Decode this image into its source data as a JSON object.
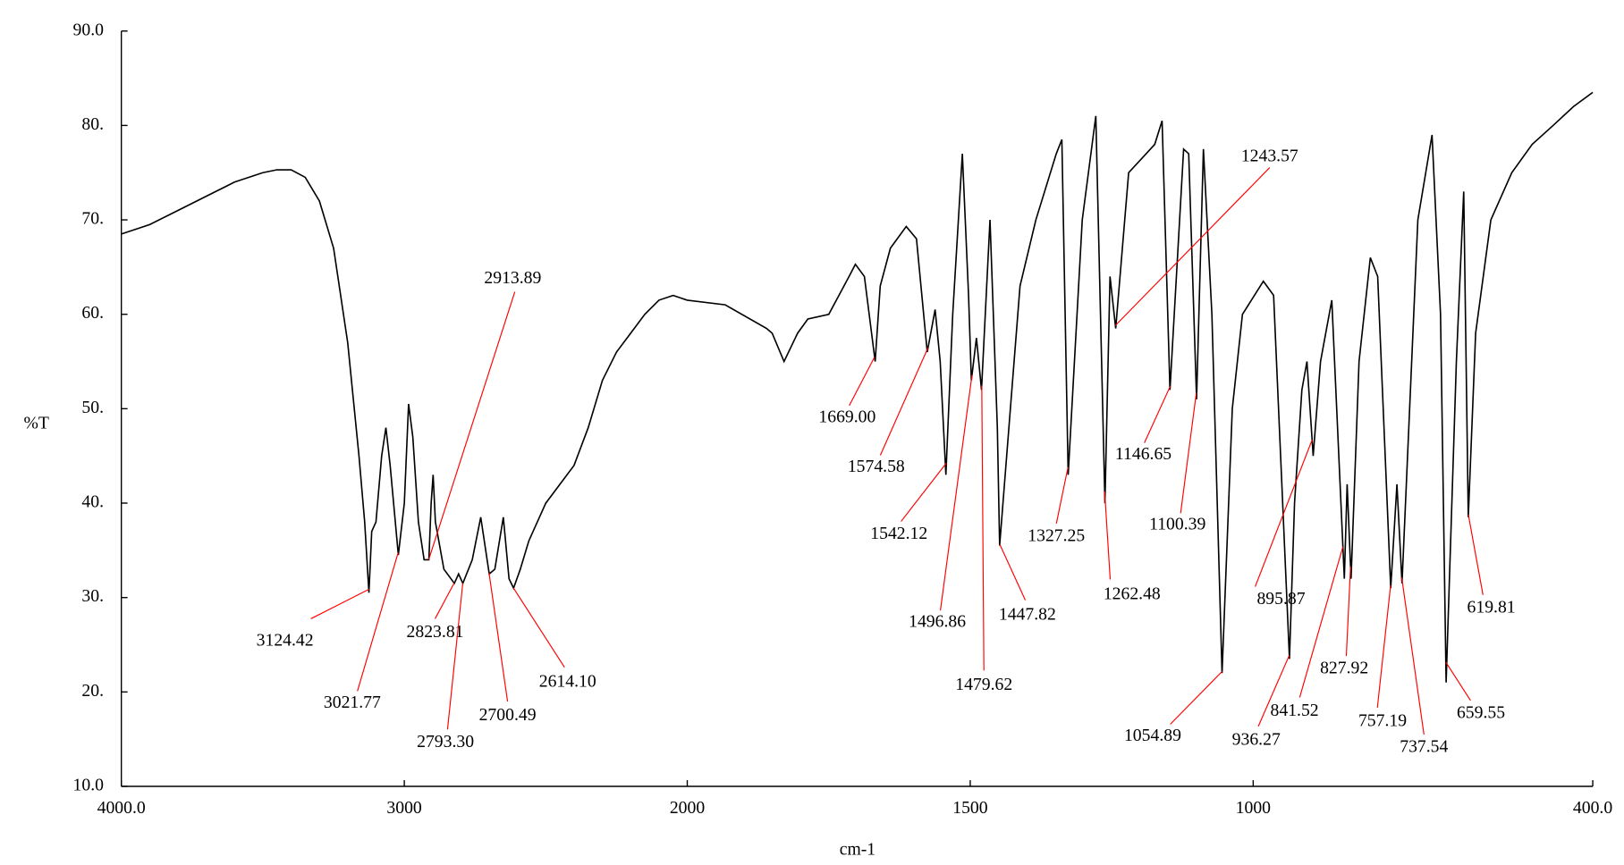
{
  "chart_data": {
    "type": "line",
    "x_label": "cm-1",
    "y_label": "%T",
    "xlim": [
      4000,
      400
    ],
    "x_scale_break": 2000,
    "xticks": [
      {
        "value": 4000,
        "label": "4000.0"
      },
      3000,
      2000,
      1500,
      1000,
      {
        "value": 400,
        "label": "400.0"
      }
    ],
    "ylim": [
      10,
      90
    ],
    "yticks": [
      {
        "value": 10,
        "label": "10.0"
      },
      {
        "value": 20,
        "label": "20."
      },
      {
        "value": 30,
        "label": "30."
      },
      {
        "value": 40,
        "label": "40."
      },
      {
        "value": 50,
        "label": "50."
      },
      {
        "value": 60,
        "label": "60."
      },
      {
        "value": 70,
        "label": "70."
      },
      {
        "value": 80,
        "label": "80."
      },
      {
        "value": 90,
        "label": "90.0"
      }
    ],
    "color": "#000000",
    "peak_color": "#ff0000",
    "x": [
      4000,
      3900,
      3800,
      3700,
      3600,
      3500,
      3450,
      3400,
      3350,
      3300,
      3250,
      3200,
      3160,
      3140,
      3125,
      3115,
      3100,
      3080,
      3065,
      3050,
      3021,
      3000,
      2985,
      2970,
      2950,
      2930,
      2913,
      2905,
      2898,
      2890,
      2860,
      2823,
      2808,
      2793,
      2760,
      2730,
      2700,
      2680,
      2650,
      2630,
      2614,
      2590,
      2560,
      2500,
      2450,
      2400,
      2350,
      2300,
      2250,
      2200,
      2150,
      2100,
      2050,
      2000,
      1933,
      1860,
      1850,
      1829,
      1805,
      1787,
      1750,
      1714,
      1703,
      1687,
      1668,
      1659,
      1641,
      1613,
      1595,
      1576,
      1562,
      1553,
      1543,
      1531,
      1514,
      1503,
      1498,
      1489,
      1480,
      1465,
      1452,
      1448,
      1412,
      1384,
      1348,
      1338,
      1327,
      1302,
      1278,
      1262,
      1253,
      1243,
      1220,
      1174,
      1161,
      1147,
      1123,
      1114,
      1100,
      1088,
      1073,
      1055,
      1037,
      1019,
      982,
      964,
      936,
      927,
      914,
      905,
      894,
      881,
      861,
      839,
      834,
      827,
      813,
      793,
      780,
      757,
      746,
      737,
      709,
      684,
      669,
      659,
      641,
      628,
      620,
      607,
      580,
      543,
      507,
      470,
      434,
      400
    ],
    "values": [
      68.5,
      69.5,
      71,
      72.5,
      74,
      75,
      75.3,
      75.3,
      74.5,
      72,
      67,
      57,
      45,
      38,
      30.5,
      37,
      38,
      45,
      48,
      44,
      34.5,
      40,
      50.5,
      47,
      38,
      34,
      34,
      40,
      43,
      38,
      33,
      31.5,
      32.5,
      31.5,
      34,
      38.5,
      32.5,
      33,
      38.5,
      32,
      31,
      33,
      36,
      40,
      42,
      44,
      48,
      53,
      56,
      58,
      60,
      61.5,
      62,
      61.5,
      61,
      58.5,
      58,
      55,
      58,
      59.5,
      60,
      64,
      65.3,
      64,
      55,
      63,
      67,
      69.3,
      68,
      56,
      60.5,
      55,
      43,
      60,
      77,
      62,
      53,
      57.5,
      52,
      70,
      48,
      35.5,
      63,
      70,
      77,
      78.5,
      43,
      70,
      81,
      40,
      64,
      58.5,
      75,
      78,
      80.5,
      52,
      77.5,
      77,
      51,
      77.5,
      60,
      22,
      50,
      60,
      63.5,
      62,
      23.5,
      40,
      52,
      55,
      45,
      55,
      61.5,
      32,
      42,
      32,
      55,
      66,
      64,
      31,
      42,
      31.5,
      70,
      79,
      60,
      21,
      55,
      73,
      38.5,
      58,
      70,
      75,
      78,
      80,
      82,
      83.5
    ],
    "peaks": [
      3124.42,
      3021.77,
      2913.89,
      2823.81,
      2793.3,
      2700.49,
      2614.1,
      1669.0,
      1574.58,
      1542.12,
      1496.86,
      1479.62,
      1447.82,
      1327.25,
      1262.48,
      1243.57,
      1146.65,
      1100.39,
      895.87,
      1054.89,
      936.27,
      841.52,
      827.92,
      757.19,
      737.54,
      659.55,
      619.81
    ]
  }
}
